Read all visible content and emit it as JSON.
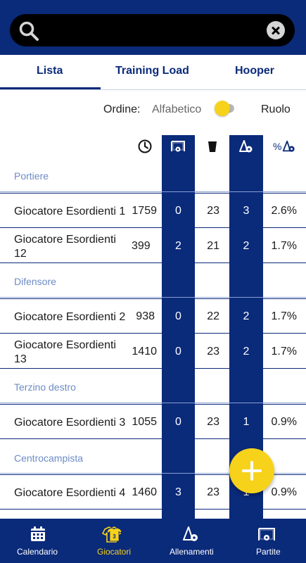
{
  "search": {
    "placeholder": "",
    "value": ""
  },
  "tabs": [
    {
      "label": "Lista",
      "active": true
    },
    {
      "label": "Training Load",
      "active": false
    },
    {
      "label": "Hooper",
      "active": false
    }
  ],
  "order": {
    "label": "Ordine:",
    "option_left": "Alfabetico",
    "option_right": "Ruolo",
    "selected": "Ruolo"
  },
  "columns": {
    "icons": [
      "clock-icon",
      "goal-icon",
      "cup-icon",
      "training-icon"
    ],
    "percent_symbol": "%"
  },
  "sections": [
    {
      "title": "Portiere",
      "rows": [
        {
          "name": "Giocatore Esordienti 1",
          "minutes": "1759",
          "col1": "0",
          "col2": "23",
          "col3": "3",
          "pct": "2.6%"
        },
        {
          "name": "Giocatore Esordienti 12",
          "minutes": "399",
          "col1": "2",
          "col2": "21",
          "col3": "2",
          "pct": "1.7%"
        }
      ]
    },
    {
      "title": "Difensore",
      "rows": [
        {
          "name": "Giocatore Esordienti 2",
          "minutes": "938",
          "col1": "0",
          "col2": "22",
          "col3": "2",
          "pct": "1.7%"
        },
        {
          "name": "Giocatore Esordienti 13",
          "minutes": "1410",
          "col1": "0",
          "col2": "23",
          "col3": "2",
          "pct": "1.7%"
        }
      ]
    },
    {
      "title": "Terzino destro",
      "rows": [
        {
          "name": "Giocatore Esordienti 3",
          "minutes": "1055",
          "col1": "0",
          "col2": "23",
          "col3": "1",
          "pct": "0.9%"
        }
      ]
    },
    {
      "title": "Centrocampista",
      "rows": [
        {
          "name": "Giocatore Esordienti 4",
          "minutes": "1460",
          "col1": "3",
          "col2": "23",
          "col3": "1",
          "pct": "0.9%"
        }
      ]
    }
  ],
  "bottom_nav": [
    {
      "label": "Calendario",
      "icon": "calendar-icon",
      "active": false
    },
    {
      "label": "Giocatori",
      "icon": "jersey-icon",
      "active": true
    },
    {
      "label": "Allenamenti",
      "icon": "training-icon",
      "active": false
    },
    {
      "label": "Partite",
      "icon": "goal-icon",
      "active": false
    }
  ],
  "colors": {
    "primary": "#0a2a7a",
    "accent": "#f7d21a",
    "section": "#6c8bc6"
  }
}
